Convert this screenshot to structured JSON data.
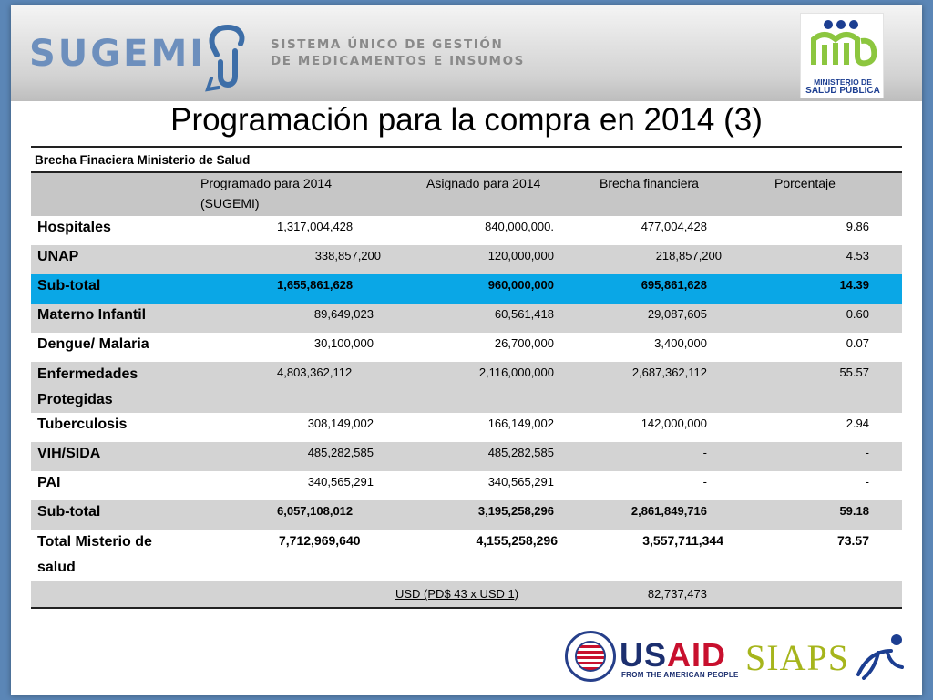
{
  "header": {
    "brand": "SUGEMI",
    "tagline_line1": "SISTEMA ÚNICO DE GESTIÓN",
    "tagline_line2": "DE MEDICAMENTOS E INSUMOS",
    "ministry_logo_line1": "MINISTERIO DE",
    "ministry_logo_line2": "SALUD PÚBLICA"
  },
  "title": "Programación para la compra en 2014 (3)",
  "table": {
    "caption": "Brecha Finaciera Ministerio de Salud",
    "columns": [
      "Programado para 2014 (SUGEMI)",
      "Asignado para 2014",
      "Brecha financiera",
      "Porcentaje"
    ],
    "rows": [
      {
        "label": "Hospitales",
        "values": [
          "1,317,004,428",
          "840,000,000.",
          "477,004,428",
          "9.86"
        ]
      },
      {
        "label": "UNAP",
        "values": [
          "338,857,200",
          "120,000,000",
          "218,857,200",
          "4.53"
        ]
      },
      {
        "label": "Sub-total",
        "values": [
          "1,655,861,628",
          "960,000,000",
          "695,861,628",
          "14.39"
        ]
      },
      {
        "label": "Materno Infantil",
        "values": [
          "89,649,023",
          "60,561,418",
          "29,087,605",
          "0.60"
        ]
      },
      {
        "label": "Dengue/ Malaria",
        "values": [
          "30,100,000",
          "26,700,000",
          "3,400,000",
          "0.07"
        ]
      },
      {
        "label": "Enfermedades Protegidas",
        "values": [
          "4,803,362,112",
          "2,116,000,000",
          "2,687,362,112",
          "55.57"
        ]
      },
      {
        "label": "Tuberculosis",
        "values": [
          "308,149,002",
          "166,149,002",
          "142,000,000",
          "2.94"
        ]
      },
      {
        "label": "VIH/SIDA",
        "values": [
          "485,282,585",
          "485,282,585",
          "-",
          "-"
        ]
      },
      {
        "label": "PAI",
        "values": [
          "340,565,291",
          "340,565,291",
          "-",
          "-"
        ]
      },
      {
        "label": "Sub-total",
        "values": [
          "6,057,108,012",
          "3,195,258,296",
          "2,861,849,716",
          "59.18"
        ]
      },
      {
        "label": "Total Misterio de salud",
        "values": [
          "7,712,969,640",
          "4,155,258,296",
          "3,557,711,344",
          "73.57"
        ]
      }
    ],
    "usd_label": "USD (PD$ 43 x USD 1)",
    "usd_value": "82,737,473"
  },
  "footer": {
    "usaid_prefix": "US",
    "usaid_suffix": "AID",
    "usaid_sub": "FROM THE AMERICAN PEOPLE",
    "siaps": "SIAPS"
  },
  "colors": {
    "subtotal_highlight": "#0aa7e6",
    "row_shade": "#d3d3d3",
    "sugemi_blue": "#6d8fbd",
    "usaid_blue": "#1c2f6f",
    "usaid_red": "#c8102e",
    "siaps_green": "#a6b51c"
  }
}
